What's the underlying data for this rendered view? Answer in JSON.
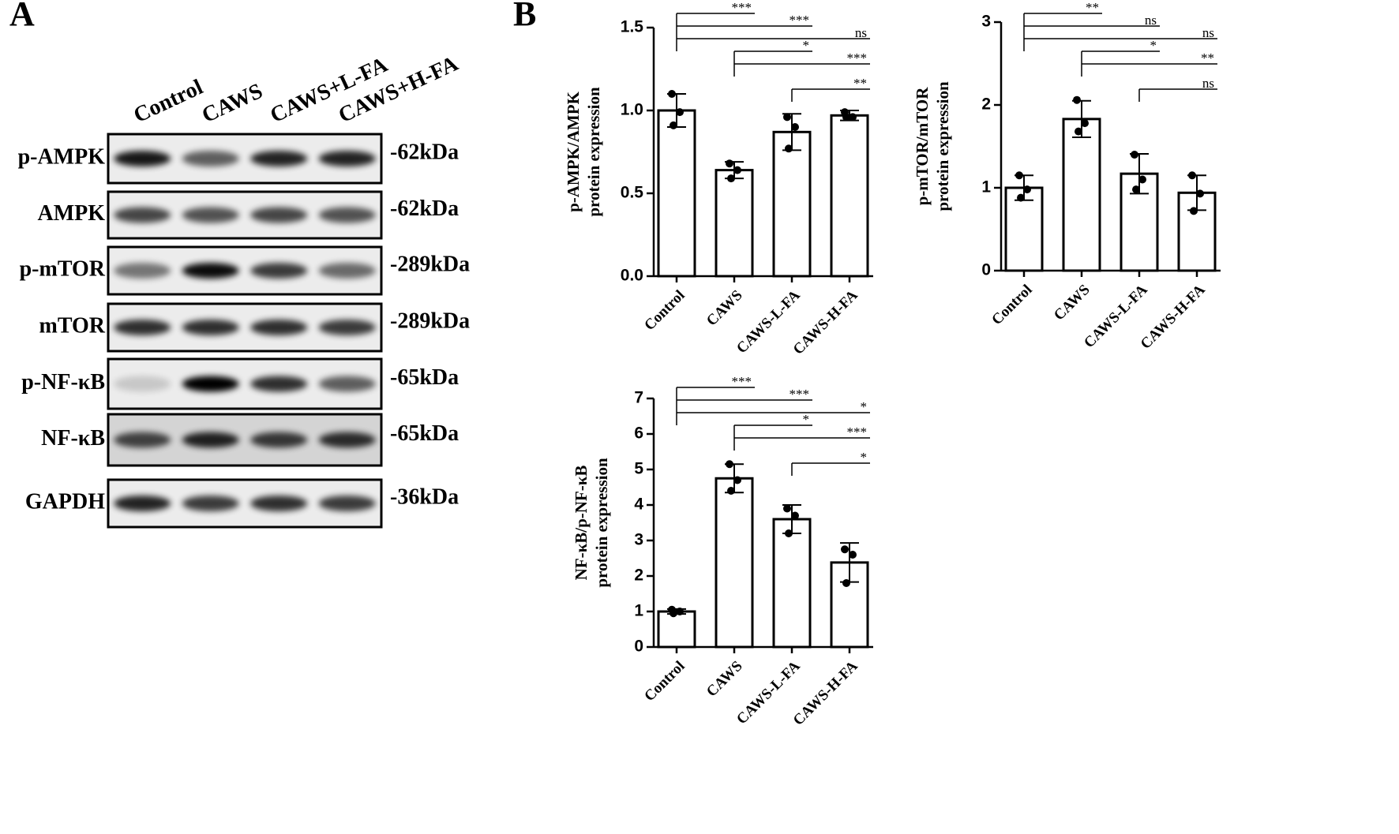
{
  "panel_labels": [
    "A",
    "B"
  ],
  "blot": {
    "columns": [
      "Control",
      "CAWS",
      "CAWS+L-FA",
      "CAWS+H-FA"
    ],
    "rows": [
      {
        "label": "p-AMPK",
        "size": "-62kDa"
      },
      {
        "label": "AMPK",
        "size": "-62kDa"
      },
      {
        "label": "p-mTOR",
        "size": "-289kDa"
      },
      {
        "label": "mTOR",
        "size": "-289kDa"
      },
      {
        "label": "p-NF-κB",
        "size": "-65kDa"
      },
      {
        "label": "NF-κB",
        "size": "-65kDa"
      },
      {
        "label": "GAPDH",
        "size": "-36kDa"
      }
    ]
  },
  "chart_data": [
    {
      "type": "bar",
      "ylabel": [
        "p-AMPK/AMPK",
        "protein expression"
      ],
      "categories": [
        "Control",
        "CAWS",
        "CAWS-L-FA",
        "CAWS-H-FA"
      ],
      "values": [
        1.0,
        0.64,
        0.87,
        0.97
      ],
      "errors": [
        0.1,
        0.05,
        0.11,
        0.03
      ],
      "points": [
        [
          1.1,
          0.99,
          0.91
        ],
        [
          0.68,
          0.64,
          0.59
        ],
        [
          0.96,
          0.9,
          0.77
        ],
        [
          0.99,
          0.96,
          0.96
        ]
      ],
      "comparisons": [
        {
          "from": 0,
          "to": 1,
          "label": "***"
        },
        {
          "from": 0,
          "to": 2,
          "label": "***"
        },
        {
          "from": 0,
          "to": 3,
          "label": "ns"
        },
        {
          "from": 1,
          "to": 2,
          "label": "*"
        },
        {
          "from": 1,
          "to": 3,
          "label": "***"
        },
        {
          "from": 2,
          "to": 3,
          "label": "**"
        }
      ],
      "ylim": [
        0,
        1.5
      ],
      "yticks": [
        {
          "value": 0,
          "label": "0.0"
        },
        {
          "value": 0.5,
          "label": "0.5"
        },
        {
          "value": 1,
          "label": "1.0"
        },
        {
          "value": 1.5,
          "label": "1.5"
        }
      ],
      "color": "#ffffff",
      "edgecolor": "#000000"
    },
    {
      "type": "bar",
      "ylabel": [
        "p-mTOR/mTOR",
        "protein expression"
      ],
      "categories": [
        "Control",
        "CAWS",
        "CAWS-L-FA",
        "CAWS-H-FA"
      ],
      "values": [
        1.0,
        1.83,
        1.17,
        0.94
      ],
      "errors": [
        0.15,
        0.22,
        0.24,
        0.21
      ],
      "points": [
        [
          1.15,
          0.98,
          0.88
        ],
        [
          2.06,
          1.78,
          1.68
        ],
        [
          1.4,
          1.1,
          0.98
        ],
        [
          1.15,
          0.93,
          0.72
        ]
      ],
      "comparisons": [
        {
          "from": 0,
          "to": 1,
          "label": "**"
        },
        {
          "from": 0,
          "to": 2,
          "label": "ns"
        },
        {
          "from": 0,
          "to": 3,
          "label": "ns"
        },
        {
          "from": 1,
          "to": 2,
          "label": "*"
        },
        {
          "from": 1,
          "to": 3,
          "label": "**"
        },
        {
          "from": 2,
          "to": 3,
          "label": "ns"
        }
      ],
      "ylim": [
        0,
        3
      ],
      "yticks": [
        0,
        1,
        2,
        3
      ],
      "color": "#ffffff",
      "edgecolor": "#000000"
    },
    {
      "type": "bar",
      "ylabel": [
        "NF-κB/p-NF-κB",
        "protein expression"
      ],
      "categories": [
        "Control",
        "CAWS",
        "CAWS-L-FA",
        "CAWS-H-FA"
      ],
      "values": [
        1.0,
        4.75,
        3.6,
        2.38
      ],
      "errors": [
        0.07,
        0.4,
        0.4,
        0.55
      ],
      "points": [
        [
          1.05,
          1.0,
          0.95
        ],
        [
          5.15,
          4.7,
          4.4
        ],
        [
          3.9,
          3.7,
          3.2
        ],
        [
          2.75,
          2.6,
          1.8
        ]
      ],
      "comparisons": [
        {
          "from": 0,
          "to": 1,
          "label": "***"
        },
        {
          "from": 0,
          "to": 2,
          "label": "***"
        },
        {
          "from": 0,
          "to": 3,
          "label": "*"
        },
        {
          "from": 1,
          "to": 2,
          "label": "*"
        },
        {
          "from": 1,
          "to": 3,
          "label": "***"
        },
        {
          "from": 2,
          "to": 3,
          "label": "*"
        }
      ],
      "ylim": [
        0,
        7
      ],
      "yticks": [
        0,
        1,
        2,
        3,
        4,
        5,
        6,
        7
      ],
      "color": "#ffffff",
      "edgecolor": "#000000"
    }
  ]
}
